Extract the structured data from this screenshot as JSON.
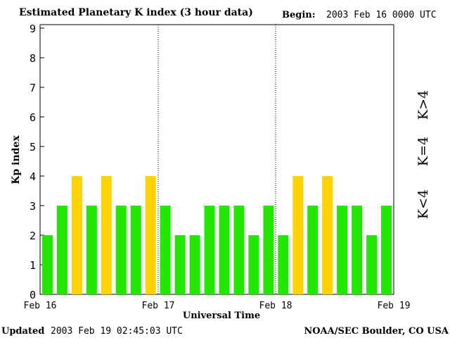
{
  "header": {
    "title": "Estimated Planetary K index (3 hour data)",
    "begin_label": "Begin:",
    "begin_value": "2003 Feb 16 0000 UTC"
  },
  "footer": {
    "updated_label": "Updated",
    "updated_value": "2003 Feb 19 02:45:03 UTC",
    "source": "NOAA/SEC Boulder, CO USA"
  },
  "legend": {
    "high": {
      "label": "K>4",
      "color": "#ff2a00"
    },
    "mid": {
      "label": "K=4",
      "color": "#ffd200"
    },
    "low": {
      "label": "K<4",
      "color": "#22e800"
    }
  },
  "chart_data": {
    "type": "bar",
    "title": "Estimated Planetary K index (3 hour data)",
    "xlabel": "Universal Time",
    "ylabel": "Kp index",
    "ylim": [
      0,
      9
    ],
    "yticks": [
      0,
      1,
      2,
      3,
      4,
      5,
      6,
      7,
      8,
      9
    ],
    "x_tick_labels": [
      "Feb 16",
      "Feb 17",
      "Feb 18",
      "Feb 19"
    ],
    "interval_hours": 3,
    "values": [
      2,
      3,
      4,
      3,
      4,
      3,
      3,
      4,
      3,
      2,
      2,
      3,
      3,
      3,
      2,
      3,
      2,
      4,
      3,
      4,
      3,
      3,
      2,
      3
    ],
    "colors": {
      "below_4": "#22e800",
      "equal_4": "#ffd200",
      "above_4": "#ff2a00"
    }
  }
}
